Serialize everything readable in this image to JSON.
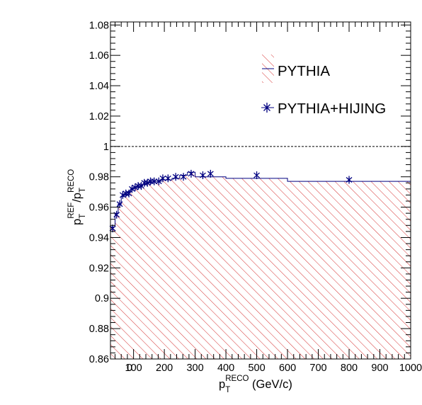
{
  "chart_data": {
    "type": "line",
    "x_range": [
      25,
      1000
    ],
    "y_range": [
      0.86,
      1.082
    ],
    "grid": false,
    "legend_position": "top-right",
    "reference_line": 1.0,
    "x_ticks": [
      100,
      200,
      300,
      400,
      500,
      600,
      700,
      800,
      900,
      1000
    ],
    "x_tick_labels": [
      "100",
      "200",
      "300",
      "400",
      "500",
      "600",
      "700",
      "800",
      "900",
      "1000"
    ],
    "extra_x_labels": [
      {
        "x": 50,
        "label": "0"
      }
    ],
    "y_ticks": [
      0.86,
      0.88,
      0.9,
      0.92,
      0.94,
      0.96,
      0.98,
      1.0,
      1.02,
      1.04,
      1.06,
      1.08
    ],
    "y_tick_labels": [
      "0.86",
      "0.88",
      "0.9",
      "0.92",
      "0.94",
      "0.96",
      "0.98",
      "1",
      "1.02",
      "1.04",
      "1.06",
      "1.08"
    ],
    "xlabel": {
      "main": "p",
      "sub": "T",
      "sup": "RECO",
      "rest": " (GeV/c)"
    },
    "ylabel": {
      "p1": "p",
      "sub1": "T",
      "sup1": "REF",
      "slash": "/p",
      "sub2": "T",
      "sup2": "RECO"
    },
    "series": [
      {
        "name": "PYTHIA",
        "style": "hist-hatched",
        "color": "#000080",
        "hatch_color": "#cc0000",
        "bin_edges": [
          25,
          40,
          50,
          60,
          70,
          80,
          90,
          100,
          110,
          120,
          130,
          140,
          150,
          160,
          175,
          190,
          200,
          225,
          250,
          275,
          300,
          350,
          400,
          500,
          600,
          1000
        ],
        "values": [
          0.947,
          0.956,
          0.962,
          0.967,
          0.968,
          0.97,
          0.972,
          0.973,
          0.973,
          0.974,
          0.975,
          0.976,
          0.976,
          0.977,
          0.977,
          0.978,
          0.978,
          0.979,
          0.981,
          0.983,
          0.98,
          0.98,
          0.979,
          0.979,
          0.977
        ]
      },
      {
        "name": "PYTHIA+HIJING",
        "style": "markers-star",
        "color": "#000080",
        "x": [
          32,
          45,
          55,
          65,
          75,
          85,
          95,
          105,
          115,
          125,
          135,
          145,
          155,
          167,
          182,
          195,
          212,
          237,
          262,
          287,
          325,
          350,
          500,
          800
        ],
        "y": [
          0.946,
          0.955,
          0.962,
          0.968,
          0.969,
          0.969,
          0.972,
          0.973,
          0.974,
          0.974,
          0.976,
          0.976,
          0.977,
          0.977,
          0.977,
          0.979,
          0.979,
          0.98,
          0.98,
          0.982,
          0.981,
          0.982,
          0.981,
          0.978
        ]
      }
    ]
  }
}
